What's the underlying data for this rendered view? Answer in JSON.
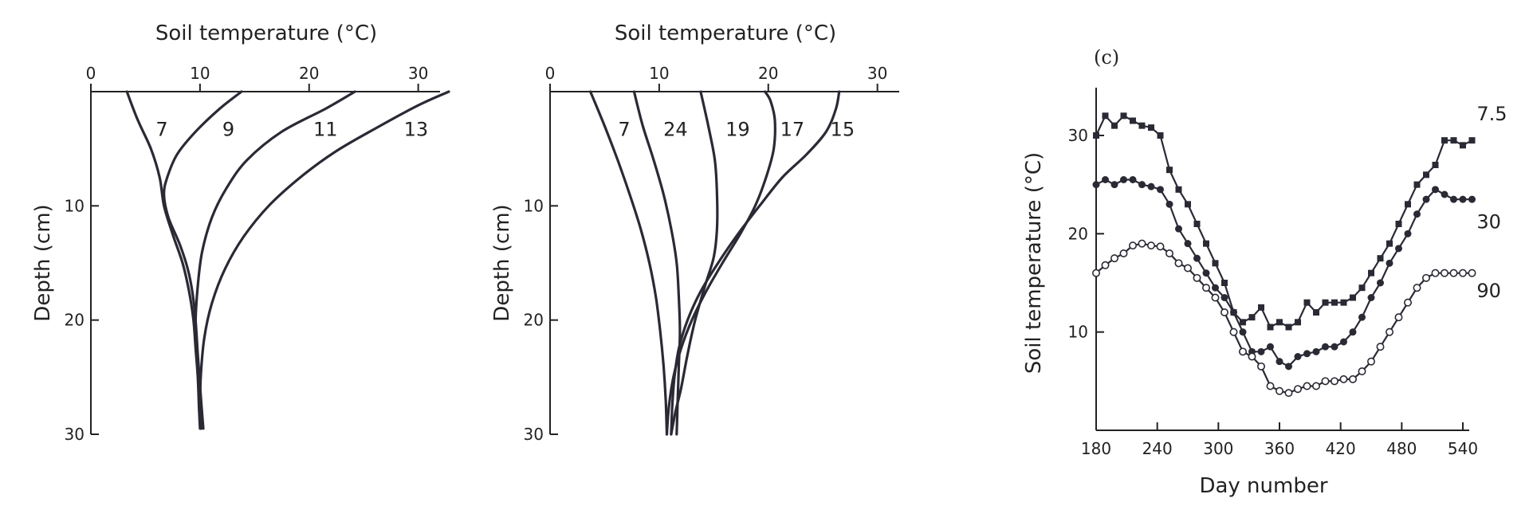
{
  "chart_data": [
    {
      "type": "line",
      "panel": "a",
      "xlabel": "Soil temperature (°C)",
      "ylabel": "Depth (cm)",
      "xlim": [
        0,
        32
      ],
      "ylim": [
        0,
        30
      ],
      "x_ticks": [
        0,
        10,
        20,
        30
      ],
      "y_ticks": [
        10,
        20,
        30
      ],
      "x_axis_position": "top",
      "y_inverted": true,
      "series": [
        {
          "name": "7",
          "points": [
            [
              3.3,
              0
            ],
            [
              4.3,
              2.5
            ],
            [
              5.5,
              5
            ],
            [
              6.3,
              7.5
            ],
            [
              6.7,
              10
            ],
            [
              7.5,
              12.5
            ],
            [
              8.4,
              15
            ],
            [
              9.0,
              17.5
            ],
            [
              9.4,
              20
            ],
            [
              9.6,
              22.5
            ],
            [
              9.8,
              25
            ],
            [
              9.9,
              27.5
            ],
            [
              10.0,
              29.5
            ]
          ]
        },
        {
          "name": "9",
          "points": [
            [
              13.8,
              0
            ],
            [
              11.8,
              1.5
            ],
            [
              9.6,
              3.5
            ],
            [
              7.9,
              5.5
            ],
            [
              7.0,
              7.5
            ],
            [
              6.7,
              9
            ],
            [
              7.1,
              11
            ],
            [
              8.2,
              13.5
            ],
            [
              9.0,
              16
            ],
            [
              9.5,
              19
            ],
            [
              9.8,
              23
            ],
            [
              10.1,
              27
            ],
            [
              10.3,
              29.5
            ]
          ]
        },
        {
          "name": "11",
          "points": [
            [
              24.2,
              0
            ],
            [
              21.5,
              1.5
            ],
            [
              17.5,
              3.5
            ],
            [
              14.3,
              6
            ],
            [
              12.4,
              8.5
            ],
            [
              11.1,
              11
            ],
            [
              10.2,
              14
            ],
            [
              9.8,
              17
            ],
            [
              9.6,
              20
            ],
            [
              9.7,
              23
            ],
            [
              9.9,
              26
            ],
            [
              10.1,
              29.5
            ]
          ]
        },
        {
          "name": "13",
          "points": [
            [
              32.8,
              0
            ],
            [
              30,
              1.2
            ],
            [
              26.5,
              3
            ],
            [
              22.5,
              5.2
            ],
            [
              19.2,
              7.5
            ],
            [
              16.3,
              10
            ],
            [
              14,
              12.7
            ],
            [
              12.3,
              15.5
            ],
            [
              11.1,
              18.5
            ],
            [
              10.4,
              21.5
            ],
            [
              10.1,
              24.5
            ],
            [
              10.0,
              27.5
            ],
            [
              10.1,
              29.5
            ]
          ]
        }
      ],
      "curve_labels": [
        {
          "text": "7",
          "x": 6.5,
          "y": 3.3
        },
        {
          "text": "9",
          "x": 12.6,
          "y": 3.3
        },
        {
          "text": "11",
          "x": 21.5,
          "y": 3.3
        },
        {
          "text": "13",
          "x": 29.8,
          "y": 3.3
        }
      ]
    },
    {
      "type": "line",
      "panel": "b",
      "xlabel": "Soil temperature (°C)",
      "ylabel": "Depth (cm)",
      "xlim": [
        0,
        32
      ],
      "ylim": [
        0,
        30
      ],
      "x_ticks": [
        0,
        10,
        20,
        30
      ],
      "y_ticks": [
        10,
        20,
        30
      ],
      "x_axis_position": "top",
      "y_inverted": true,
      "series": [
        {
          "name": "7",
          "points": [
            [
              3.7,
              0
            ],
            [
              5,
              3
            ],
            [
              6.2,
              6
            ],
            [
              7.3,
              9
            ],
            [
              8.3,
              12
            ],
            [
              9.1,
              15
            ],
            [
              9.7,
              18
            ],
            [
              10.1,
              21
            ],
            [
              10.4,
              24
            ],
            [
              10.6,
              27
            ],
            [
              10.7,
              30
            ]
          ]
        },
        {
          "name": "24",
          "points": [
            [
              7.7,
              0
            ],
            [
              8.5,
              3
            ],
            [
              9.5,
              6
            ],
            [
              10.4,
              9
            ],
            [
              11.1,
              12
            ],
            [
              11.6,
              15
            ],
            [
              11.8,
              18
            ],
            [
              11.9,
              21
            ],
            [
              11.8,
              24
            ],
            [
              11.7,
              27
            ],
            [
              11.6,
              30
            ]
          ]
        },
        {
          "name": "19",
          "points": [
            [
              13.8,
              0
            ],
            [
              14.5,
              3
            ],
            [
              15.1,
              6
            ],
            [
              15.3,
              9
            ],
            [
              15.3,
              12
            ],
            [
              15.0,
              14.5
            ],
            [
              14.2,
              17
            ],
            [
              13.3,
              20
            ],
            [
              12.6,
              23
            ],
            [
              12.0,
              26
            ],
            [
              11.5,
              28
            ],
            [
              11.1,
              30
            ]
          ]
        },
        {
          "name": "17",
          "points": [
            [
              19.7,
              0
            ],
            [
              20.2,
              0.8
            ],
            [
              20.6,
              2.5
            ],
            [
              20.5,
              5
            ],
            [
              19.8,
              7.5
            ],
            [
              18.8,
              10
            ],
            [
              17.4,
              12.5
            ],
            [
              15.8,
              15
            ],
            [
              14.3,
              17.5
            ],
            [
              13.0,
              20
            ],
            [
              12.0,
              22.5
            ],
            [
              11.3,
              25
            ],
            [
              10.9,
              27.5
            ],
            [
              10.7,
              30
            ]
          ]
        },
        {
          "name": "15",
          "points": [
            [
              26.5,
              0
            ],
            [
              26.2,
              1.5
            ],
            [
              25.3,
              3.5
            ],
            [
              23.5,
              5.5
            ],
            [
              21.3,
              7.5
            ],
            [
              19.2,
              10
            ],
            [
              17.2,
              12.5
            ],
            [
              15.4,
              15
            ],
            [
              13.8,
              17.5
            ],
            [
              12.6,
              20
            ],
            [
              11.8,
              22.5
            ],
            [
              11.4,
              25
            ],
            [
              11.2,
              27.5
            ],
            [
              11.1,
              30
            ]
          ]
        }
      ],
      "curve_labels": [
        {
          "text": "7",
          "x": 6.8,
          "y": 3.3
        },
        {
          "text": "24",
          "x": 11.5,
          "y": 3.3
        },
        {
          "text": "19",
          "x": 17.2,
          "y": 3.3
        },
        {
          "text": "17",
          "x": 22.2,
          "y": 3.3
        },
        {
          "text": "15",
          "x": 26.8,
          "y": 3.3
        }
      ]
    },
    {
      "type": "line",
      "panel": "c",
      "tag": "(c)",
      "xlabel": "Day number",
      "ylabel": "Soil temperature (°C)",
      "xlim": [
        180,
        550
      ],
      "ylim": [
        0,
        35
      ],
      "x_ticks": [
        180,
        240,
        300,
        360,
        420,
        480,
        540
      ],
      "y_ticks": [
        10,
        20,
        30
      ],
      "series": [
        {
          "name": "7.5",
          "marker": "square-filled",
          "x": [
            180,
            189,
            198,
            207,
            216,
            225,
            234,
            243,
            252,
            261,
            270,
            279,
            288,
            297,
            306,
            315,
            324,
            333,
            342,
            351,
            360,
            369,
            378,
            387,
            396,
            405,
            414,
            423,
            432,
            441,
            450,
            459,
            468,
            477,
            486,
            495,
            504,
            513,
            522,
            531,
            540,
            549
          ],
          "values": [
            30,
            32,
            31,
            32,
            31.5,
            31,
            30.8,
            30,
            26.5,
            24.5,
            23,
            21,
            19,
            17,
            15,
            12,
            11,
            11.5,
            12.5,
            10.5,
            11,
            10.5,
            11,
            13,
            12,
            13,
            13,
            13,
            13.5,
            14.5,
            16,
            17.5,
            19,
            21,
            23,
            25,
            26,
            27,
            29.5,
            29.5,
            29,
            29.5
          ]
        },
        {
          "name": "30",
          "marker": "circle-filled",
          "x": [
            180,
            189,
            198,
            207,
            216,
            225,
            234,
            243,
            252,
            261,
            270,
            279,
            288,
            297,
            306,
            315,
            324,
            333,
            342,
            351,
            360,
            369,
            378,
            387,
            396,
            405,
            414,
            423,
            432,
            441,
            450,
            459,
            468,
            477,
            486,
            495,
            504,
            513,
            522,
            531,
            540,
            549
          ],
          "values": [
            25,
            25.5,
            25,
            25.5,
            25.5,
            25,
            24.8,
            24.5,
            23,
            20.5,
            19,
            17.5,
            16,
            14.5,
            13.5,
            12,
            10,
            8,
            8,
            8.5,
            7,
            6.5,
            7.5,
            7.8,
            8,
            8.5,
            8.5,
            9,
            10,
            11.5,
            13.5,
            15,
            17,
            18.5,
            20,
            22,
            23.5,
            24.5,
            24,
            23.5,
            23.5,
            23.5
          ]
        },
        {
          "name": "90",
          "marker": "circle-open",
          "x": [
            180,
            189,
            198,
            207,
            216,
            225,
            234,
            243,
            252,
            261,
            270,
            279,
            288,
            297,
            306,
            315,
            324,
            333,
            342,
            351,
            360,
            369,
            378,
            387,
            396,
            405,
            414,
            423,
            432,
            441,
            450,
            459,
            468,
            477,
            486,
            495,
            504,
            513,
            522,
            531,
            540,
            549
          ],
          "values": [
            16,
            16.8,
            17.5,
            18,
            18.8,
            19,
            18.8,
            18.7,
            18,
            17,
            16.5,
            15.5,
            14.5,
            13.5,
            12,
            10,
            8,
            7.5,
            6.5,
            4.5,
            4,
            3.8,
            4.2,
            4.5,
            4.5,
            5,
            5,
            5.2,
            5.2,
            6,
            7,
            8.5,
            10,
            11.5,
            13,
            14.5,
            15.5,
            16,
            16,
            16,
            16,
            16
          ]
        }
      ],
      "series_labels": [
        {
          "text": "7.5",
          "x": 552,
          "y": 32.2
        },
        {
          "text": "30",
          "x": 552,
          "y": 21.2
        },
        {
          "text": "90",
          "x": 552,
          "y": 14.2
        }
      ]
    }
  ],
  "colors": {
    "line": "#2a2a35",
    "axis": "#222222",
    "background": "#ffffff"
  }
}
